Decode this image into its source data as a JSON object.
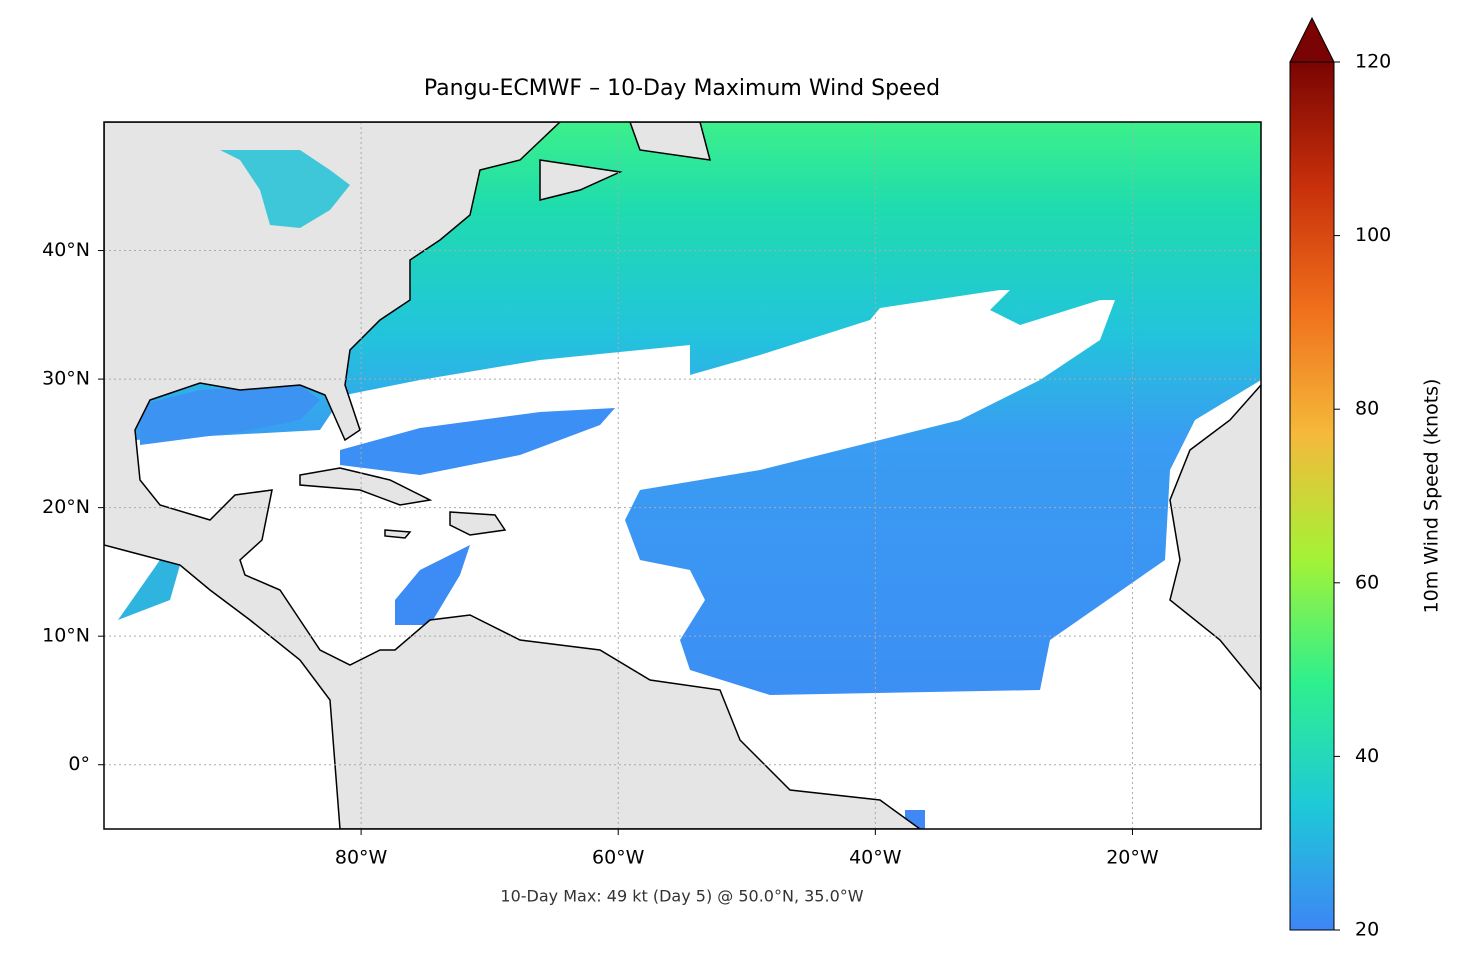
{
  "chart_data": {
    "type": "map",
    "title": "Pangu-ECMWF – 10-Day Maximum Wind Speed",
    "annotation": "10-Day Max: 49 kt (Day 5) @ 50.0°N, 35.0°W",
    "xlim": [
      -100,
      -10
    ],
    "ylim": [
      -5,
      50
    ],
    "xticks": [
      {
        "value": -80,
        "label": "80°W"
      },
      {
        "value": -60,
        "label": "60°W"
      },
      {
        "value": -40,
        "label": "40°W"
      },
      {
        "value": -20,
        "label": "20°W"
      }
    ],
    "yticks": [
      {
        "value": 0,
        "label": "0°"
      },
      {
        "value": 10,
        "label": "10°N"
      },
      {
        "value": 20,
        "label": "20°N"
      },
      {
        "value": 30,
        "label": "30°N"
      },
      {
        "value": 40,
        "label": "40°N"
      }
    ],
    "grid": true,
    "colorbar": {
      "label": "10m Wind Speed (knots)",
      "lim": [
        20,
        120
      ],
      "ticks": [
        20,
        40,
        60,
        80,
        100,
        120
      ],
      "colormap": [
        "#3e85f5",
        "#1ec9d8",
        "#2ef08e",
        "#a5f236",
        "#f5b93a",
        "#f0701c",
        "#c8300a",
        "#7a0403"
      ]
    }
  }
}
